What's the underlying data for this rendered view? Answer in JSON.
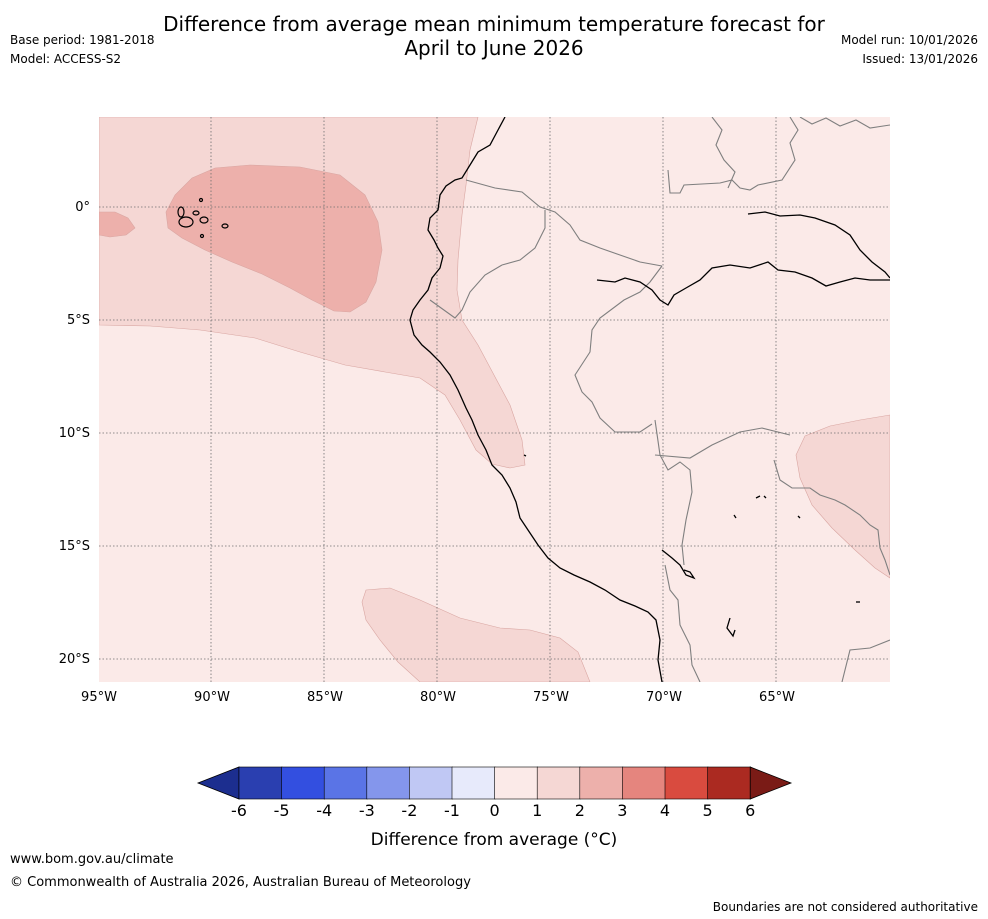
{
  "header": {
    "title_line1": "Difference from average mean minimum temperature forecast for",
    "title_line2": "April to June 2026",
    "base_period": "Base period: 1981-2018",
    "model": "Model: ACCESS-S2",
    "model_run": "Model run: 10/01/2026",
    "issued": "Issued: 13/01/2026"
  },
  "map": {
    "lat_labels": [
      "0°",
      "5°S",
      "10°S",
      "15°S",
      "20°S"
    ],
    "lon_labels": [
      "95°W",
      "90°W",
      "85°W",
      "80°W",
      "75°W",
      "70°W",
      "65°W"
    ],
    "colors": {
      "bin_0_1": "#fbeae8",
      "bin_1_2": "#f5d7d4",
      "bin_2_3": "#edb0ab",
      "coast": "#000000",
      "border": "#7f7f7f"
    }
  },
  "colorbar": {
    "tick_labels": [
      "-6",
      "-5",
      "-4",
      "-3",
      "-2",
      "-1",
      "0",
      "1",
      "2",
      "3",
      "4",
      "5",
      "6"
    ],
    "colors": [
      "#1c2e8f",
      "#2a3fb0",
      "#334fe0",
      "#5a74e6",
      "#8496ec",
      "#c0c8f4",
      "#e7eafb",
      "#fbeae8",
      "#f5d7d4",
      "#edb0ab",
      "#e5857e",
      "#d94b3f",
      "#ab2a21",
      "#7a1b16"
    ],
    "title": "Difference from average (°C)"
  },
  "footer": {
    "url": "www.bom.gov.au/climate",
    "copyright": "© Commonwealth of Australia 2026, Australian Bureau of Meteorology",
    "disclaimer": "Boundaries are not considered authoritative"
  }
}
